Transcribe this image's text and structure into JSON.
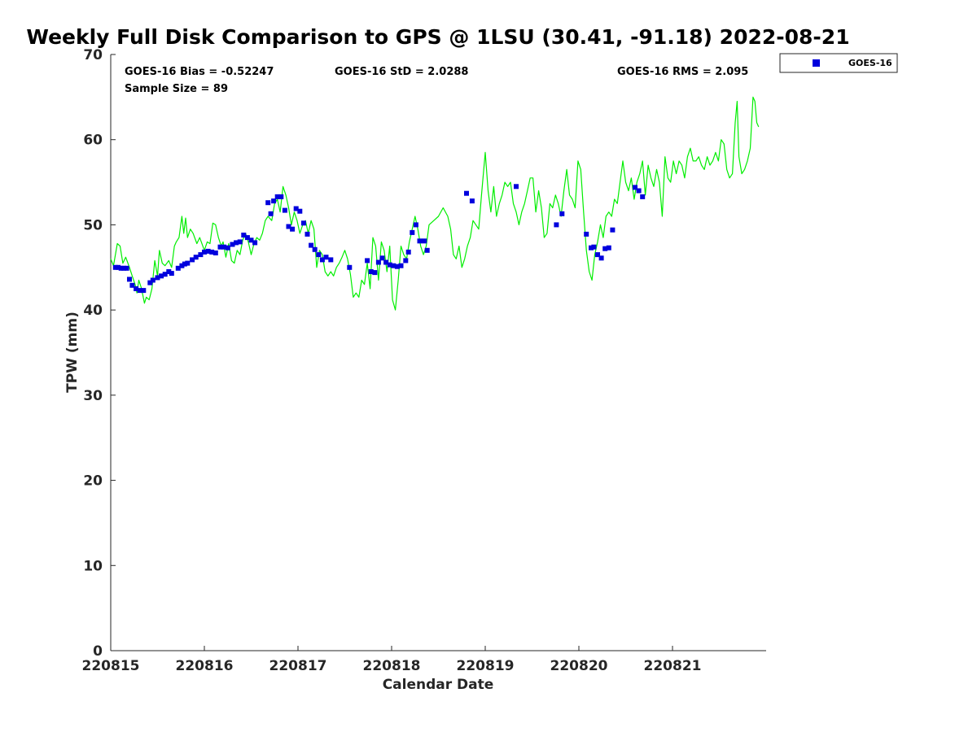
{
  "chart_data": {
    "type": "line",
    "title": "Weekly Full Disk Comparison to GPS @ 1LSU (30.41, -91.18) 2022-08-21",
    "xlabel": "Calendar Date",
    "ylabel": "TPW (mm)",
    "xlim": [
      0,
      7
    ],
    "ylim": [
      0,
      70
    ],
    "x_tick_values": [
      0,
      1,
      2,
      3,
      4,
      5,
      6
    ],
    "x_tick_labels": [
      "220815",
      "220816",
      "220817",
      "220818",
      "220819",
      "220820",
      "220821"
    ],
    "y_tick_values": [
      0,
      10,
      20,
      30,
      40,
      50,
      60,
      70
    ],
    "y_tick_labels": [
      "0",
      "10",
      "20",
      "30",
      "40",
      "50",
      "60",
      "70"
    ],
    "stats": {
      "bias": "GOES-16 Bias = -0.52247",
      "std": "GOES-16 StD = 2.0288",
      "rms": "GOES-16 RMS = 2.095",
      "sample_size": "Sample Size = 89"
    },
    "legend": [
      {
        "name": "GOES-16",
        "color": "#0000dd",
        "marker": "square"
      }
    ],
    "gps_series": {
      "name": "GPS",
      "color": "#00ee00",
      "points": [
        [
          0.0,
          46.0
        ],
        [
          0.03,
          45.2
        ],
        [
          0.07,
          47.8
        ],
        [
          0.1,
          47.5
        ],
        [
          0.13,
          45.5
        ],
        [
          0.16,
          46.2
        ],
        [
          0.2,
          45.0
        ],
        [
          0.23,
          44.0
        ],
        [
          0.26,
          43.0
        ],
        [
          0.28,
          42.0
        ],
        [
          0.3,
          43.5
        ],
        [
          0.33,
          42.5
        ],
        [
          0.36,
          40.8
        ],
        [
          0.38,
          41.5
        ],
        [
          0.41,
          41.2
        ],
        [
          0.44,
          42.5
        ],
        [
          0.47,
          45.8
        ],
        [
          0.5,
          44.0
        ],
        [
          0.52,
          47.0
        ],
        [
          0.55,
          45.5
        ],
        [
          0.58,
          45.2
        ],
        [
          0.62,
          45.8
        ],
        [
          0.65,
          45.0
        ],
        [
          0.68,
          47.5
        ],
        [
          0.7,
          48.0
        ],
        [
          0.73,
          48.5
        ],
        [
          0.76,
          51.0
        ],
        [
          0.78,
          49.0
        ],
        [
          0.8,
          50.8
        ],
        [
          0.82,
          48.5
        ],
        [
          0.85,
          49.5
        ],
        [
          0.88,
          49.0
        ],
        [
          0.92,
          47.8
        ],
        [
          0.95,
          48.5
        ],
        [
          1.0,
          47.0
        ],
        [
          1.03,
          48.0
        ],
        [
          1.06,
          47.8
        ],
        [
          1.09,
          50.2
        ],
        [
          1.12,
          50.0
        ],
        [
          1.15,
          48.5
        ],
        [
          1.18,
          47.5
        ],
        [
          1.2,
          48.0
        ],
        [
          1.23,
          46.2
        ],
        [
          1.26,
          47.8
        ],
        [
          1.29,
          45.8
        ],
        [
          1.32,
          45.5
        ],
        [
          1.35,
          47.0
        ],
        [
          1.38,
          46.5
        ],
        [
          1.41,
          48.2
        ],
        [
          1.44,
          49.0
        ],
        [
          1.47,
          48.0
        ],
        [
          1.5,
          46.5
        ],
        [
          1.53,
          47.8
        ],
        [
          1.56,
          48.5
        ],
        [
          1.59,
          48.2
        ],
        [
          1.62,
          49.0
        ],
        [
          1.65,
          50.5
        ],
        [
          1.68,
          51.0
        ],
        [
          1.72,
          50.5
        ],
        [
          1.75,
          52.5
        ],
        [
          1.78,
          53.0
        ],
        [
          1.81,
          51.5
        ],
        [
          1.84,
          54.5
        ],
        [
          1.87,
          53.5
        ],
        [
          1.9,
          52.0
        ],
        [
          1.93,
          50.0
        ],
        [
          1.96,
          51.5
        ],
        [
          1.99,
          50.5
        ],
        [
          2.02,
          49.0
        ],
        [
          2.05,
          50.0
        ],
        [
          2.08,
          50.5
        ],
        [
          2.11,
          49.0
        ],
        [
          2.14,
          50.5
        ],
        [
          2.17,
          49.5
        ],
        [
          2.2,
          45.0
        ],
        [
          2.23,
          47.0
        ],
        [
          2.26,
          46.5
        ],
        [
          2.29,
          44.5
        ],
        [
          2.32,
          44.0
        ],
        [
          2.35,
          44.5
        ],
        [
          2.38,
          44.0
        ],
        [
          2.41,
          45.0
        ],
        [
          2.44,
          45.5
        ],
        [
          2.47,
          46.2
        ],
        [
          2.5,
          47.0
        ],
        [
          2.53,
          46.0
        ],
        [
          2.56,
          44.2
        ],
        [
          2.59,
          41.5
        ],
        [
          2.62,
          42.0
        ],
        [
          2.65,
          41.5
        ],
        [
          2.68,
          43.5
        ],
        [
          2.71,
          43.0
        ],
        [
          2.74,
          45.5
        ],
        [
          2.77,
          42.5
        ],
        [
          2.8,
          48.5
        ],
        [
          2.83,
          47.5
        ],
        [
          2.86,
          43.5
        ],
        [
          2.89,
          48.0
        ],
        [
          2.92,
          47.0
        ],
        [
          2.95,
          44.5
        ],
        [
          2.98,
          47.5
        ],
        [
          3.01,
          41.2
        ],
        [
          3.04,
          40.0
        ],
        [
          3.07,
          43.5
        ],
        [
          3.1,
          47.5
        ],
        [
          3.13,
          46.5
        ],
        [
          3.16,
          46.0
        ],
        [
          3.19,
          48.0
        ],
        [
          3.22,
          49.5
        ],
        [
          3.25,
          51.0
        ],
        [
          3.28,
          49.5
        ],
        [
          3.31,
          47.5
        ],
        [
          3.34,
          46.5
        ],
        [
          3.37,
          47.5
        ],
        [
          3.4,
          50.0
        ],
        [
          3.45,
          50.5
        ],
        [
          3.5,
          51.0
        ],
        [
          3.55,
          52.0
        ],
        [
          3.6,
          51.0
        ],
        [
          3.63,
          49.5
        ],
        [
          3.66,
          46.5
        ],
        [
          3.69,
          46.0
        ],
        [
          3.72,
          47.5
        ],
        [
          3.75,
          45.0
        ],
        [
          3.78,
          46.0
        ],
        [
          3.81,
          47.5
        ],
        [
          3.84,
          48.5
        ],
        [
          3.87,
          50.5
        ],
        [
          3.9,
          50.0
        ],
        [
          3.93,
          49.5
        ],
        [
          3.96,
          53.5
        ],
        [
          4.0,
          58.5
        ],
        [
          4.03,
          54.0
        ],
        [
          4.06,
          51.5
        ],
        [
          4.09,
          54.5
        ],
        [
          4.12,
          51.0
        ],
        [
          4.15,
          52.5
        ],
        [
          4.18,
          53.5
        ],
        [
          4.21,
          55.0
        ],
        [
          4.24,
          54.5
        ],
        [
          4.27,
          55.0
        ],
        [
          4.3,
          52.5
        ],
        [
          4.33,
          51.5
        ],
        [
          4.36,
          50.0
        ],
        [
          4.39,
          51.5
        ],
        [
          4.42,
          52.5
        ],
        [
          4.45,
          54.0
        ],
        [
          4.48,
          55.5
        ],
        [
          4.51,
          55.5
        ],
        [
          4.54,
          51.5
        ],
        [
          4.57,
          54.0
        ],
        [
          4.6,
          52.0
        ],
        [
          4.63,
          48.5
        ],
        [
          4.66,
          49.0
        ],
        [
          4.69,
          52.5
        ],
        [
          4.72,
          52.0
        ],
        [
          4.75,
          53.5
        ],
        [
          4.78,
          52.5
        ],
        [
          4.81,
          51.0
        ],
        [
          4.84,
          54.0
        ],
        [
          4.87,
          56.5
        ],
        [
          4.9,
          53.5
        ],
        [
          4.93,
          53.0
        ],
        [
          4.96,
          52.0
        ],
        [
          4.99,
          57.5
        ],
        [
          5.02,
          56.5
        ],
        [
          5.05,
          51.5
        ],
        [
          5.08,
          47.0
        ],
        [
          5.11,
          44.5
        ],
        [
          5.14,
          43.5
        ],
        [
          5.17,
          46.5
        ],
        [
          5.2,
          48.0
        ],
        [
          5.23,
          50.0
        ],
        [
          5.26,
          48.5
        ],
        [
          5.29,
          51.0
        ],
        [
          5.32,
          51.5
        ],
        [
          5.35,
          51.0
        ],
        [
          5.38,
          53.0
        ],
        [
          5.41,
          52.5
        ],
        [
          5.44,
          55.0
        ],
        [
          5.47,
          57.5
        ],
        [
          5.5,
          55.0
        ],
        [
          5.53,
          54.0
        ],
        [
          5.56,
          55.5
        ],
        [
          5.59,
          53.0
        ],
        [
          5.62,
          55.0
        ],
        [
          5.65,
          56.0
        ],
        [
          5.68,
          57.5
        ],
        [
          5.71,
          53.5
        ],
        [
          5.74,
          57.0
        ],
        [
          5.77,
          55.5
        ],
        [
          5.8,
          54.5
        ],
        [
          5.83,
          56.5
        ],
        [
          5.86,
          55.0
        ],
        [
          5.89,
          51.0
        ],
        [
          5.92,
          58.0
        ],
        [
          5.95,
          55.5
        ],
        [
          5.98,
          55.0
        ],
        [
          6.01,
          57.5
        ],
        [
          6.04,
          56.0
        ],
        [
          6.07,
          57.5
        ],
        [
          6.1,
          57.0
        ],
        [
          6.13,
          55.5
        ],
        [
          6.16,
          58.0
        ],
        [
          6.19,
          59.0
        ],
        [
          6.22,
          57.5
        ],
        [
          6.25,
          57.5
        ],
        [
          6.28,
          58.0
        ],
        [
          6.31,
          57.0
        ],
        [
          6.34,
          56.5
        ],
        [
          6.37,
          58.0
        ],
        [
          6.4,
          57.0
        ],
        [
          6.43,
          57.5
        ],
        [
          6.46,
          58.5
        ],
        [
          6.49,
          57.5
        ],
        [
          6.52,
          60.0
        ],
        [
          6.55,
          59.5
        ],
        [
          6.58,
          56.5
        ],
        [
          6.61,
          55.5
        ],
        [
          6.64,
          56.0
        ],
        [
          6.67,
          62.0
        ],
        [
          6.69,
          64.5
        ],
        [
          6.71,
          58.0
        ],
        [
          6.74,
          56.0
        ],
        [
          6.77,
          56.5
        ],
        [
          6.8,
          57.5
        ],
        [
          6.83,
          59.0
        ],
        [
          6.86,
          65.0
        ],
        [
          6.88,
          64.5
        ],
        [
          6.9,
          62.0
        ],
        [
          6.92,
          61.5
        ]
      ]
    },
    "series": [
      {
        "name": "GOES-16",
        "color": "#0000dd",
        "points": [
          [
            0.05,
            45.0
          ],
          [
            0.08,
            45.0
          ],
          [
            0.11,
            44.9
          ],
          [
            0.14,
            44.9
          ],
          [
            0.17,
            44.9
          ],
          [
            0.2,
            43.6
          ],
          [
            0.23,
            42.9
          ],
          [
            0.27,
            42.5
          ],
          [
            0.31,
            42.3
          ],
          [
            0.35,
            42.3
          ],
          [
            0.42,
            43.2
          ],
          [
            0.45,
            43.5
          ],
          [
            0.5,
            43.8
          ],
          [
            0.54,
            44.0
          ],
          [
            0.58,
            44.2
          ],
          [
            0.62,
            44.5
          ],
          [
            0.65,
            44.3
          ],
          [
            0.72,
            44.9
          ],
          [
            0.76,
            45.2
          ],
          [
            0.79,
            45.4
          ],
          [
            0.82,
            45.5
          ],
          [
            0.87,
            45.9
          ],
          [
            0.91,
            46.2
          ],
          [
            0.96,
            46.5
          ],
          [
            1.0,
            46.8
          ],
          [
            1.04,
            46.9
          ],
          [
            1.08,
            46.8
          ],
          [
            1.12,
            46.7
          ],
          [
            1.17,
            47.4
          ],
          [
            1.21,
            47.4
          ],
          [
            1.25,
            47.3
          ],
          [
            1.3,
            47.7
          ],
          [
            1.34,
            47.9
          ],
          [
            1.38,
            48.0
          ],
          [
            1.42,
            48.8
          ],
          [
            1.46,
            48.5
          ],
          [
            1.5,
            48.2
          ],
          [
            1.54,
            47.9
          ],
          [
            1.68,
            52.6
          ],
          [
            1.71,
            51.3
          ],
          [
            1.74,
            52.8
          ],
          [
            1.78,
            53.3
          ],
          [
            1.82,
            53.3
          ],
          [
            1.86,
            51.7
          ],
          [
            1.9,
            49.8
          ],
          [
            1.94,
            49.5
          ],
          [
            1.98,
            51.9
          ],
          [
            2.02,
            51.6
          ],
          [
            2.06,
            50.2
          ],
          [
            2.1,
            48.9
          ],
          [
            2.14,
            47.6
          ],
          [
            2.18,
            47.1
          ],
          [
            2.22,
            46.5
          ],
          [
            2.26,
            45.9
          ],
          [
            2.3,
            46.2
          ],
          [
            2.35,
            45.9
          ],
          [
            2.55,
            45.0
          ],
          [
            2.74,
            45.8
          ],
          [
            2.78,
            44.5
          ],
          [
            2.82,
            44.4
          ],
          [
            2.86,
            45.6
          ],
          [
            2.9,
            46.1
          ],
          [
            2.94,
            45.6
          ],
          [
            2.98,
            45.3
          ],
          [
            3.02,
            45.2
          ],
          [
            3.06,
            45.1
          ],
          [
            3.1,
            45.2
          ],
          [
            3.15,
            45.8
          ],
          [
            3.18,
            46.8
          ],
          [
            3.22,
            49.1
          ],
          [
            3.26,
            50.0
          ],
          [
            3.3,
            48.1
          ],
          [
            3.35,
            48.1
          ],
          [
            3.38,
            47.0
          ],
          [
            3.8,
            53.7
          ],
          [
            3.86,
            52.8
          ],
          [
            4.33,
            54.5
          ],
          [
            4.76,
            50.0
          ],
          [
            4.82,
            51.3
          ],
          [
            5.08,
            48.9
          ],
          [
            5.13,
            47.3
          ],
          [
            5.16,
            47.4
          ],
          [
            5.2,
            46.5
          ],
          [
            5.24,
            46.1
          ],
          [
            5.28,
            47.2
          ],
          [
            5.32,
            47.3
          ],
          [
            5.36,
            49.4
          ],
          [
            5.6,
            54.4
          ],
          [
            5.64,
            54.0
          ],
          [
            5.68,
            53.3
          ]
        ]
      }
    ]
  }
}
